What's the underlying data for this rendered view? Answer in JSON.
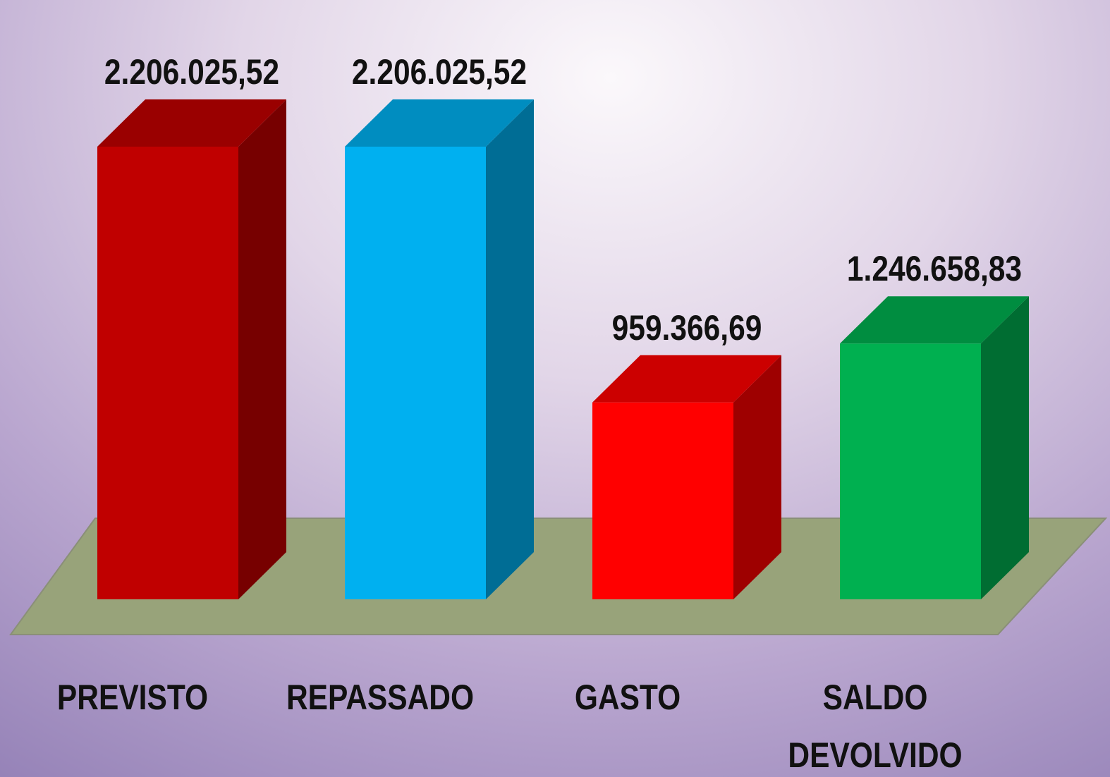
{
  "chart_data": {
    "type": "bar3d",
    "categories": [
      "PREVISTO",
      "REPASSADO",
      "GASTO",
      "SALDO DEVOLVIDO"
    ],
    "values": [
      2206025.52,
      2206025.52,
      959366.69,
      1246658.83
    ],
    "value_labels": [
      "2.206.025,52",
      "2.206.025,52",
      "959.366,69",
      "1.246.658,83"
    ],
    "colors": [
      "#c00000",
      "#00b0f0",
      "#ff0000",
      "#00b050"
    ]
  }
}
